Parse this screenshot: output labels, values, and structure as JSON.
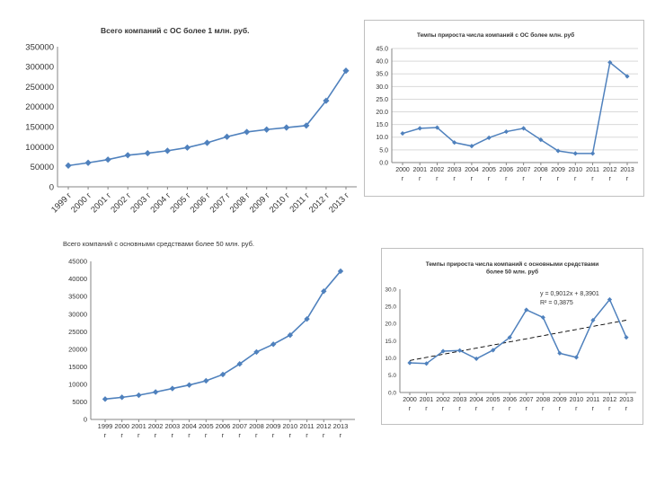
{
  "chart_data": [
    {
      "type": "line",
      "title": "Всего компаний с ОС более 1 млн. руб.",
      "categories": [
        "1999 г",
        "2000 г",
        "2001 г",
        "2002 г",
        "2003 г",
        "2004 г",
        "2005 г",
        "2006 г",
        "2007 г",
        "2008 г",
        "2009 г",
        "2010 г",
        "2011 г",
        "2012 г",
        "2013 г"
      ],
      "values": [
        53000,
        60000,
        68000,
        79000,
        84000,
        90000,
        98000,
        110000,
        125000,
        137000,
        143000,
        148000,
        153000,
        215000,
        290000
      ],
      "ylim": [
        0,
        350000
      ],
      "yticks": [
        "0",
        "50000",
        "100000",
        "150000",
        "200000",
        "250000",
        "300000",
        "350000"
      ],
      "color": "#4f81bd"
    },
    {
      "type": "line",
      "title": "Темпы прироста числа компаний с ОС более млн. руб",
      "categories": [
        "2000 г",
        "2001 г",
        "2002 г",
        "2003 г",
        "2004 г",
        "2005 г",
        "2006 г",
        "2007 г",
        "2008 г",
        "2009 г",
        "2010 г",
        "2011 г",
        "2012 г",
        "2013 г"
      ],
      "values": [
        11.5,
        13.5,
        13.8,
        7.9,
        6.5,
        9.8,
        12.2,
        13.5,
        9.0,
        4.6,
        3.6,
        3.6,
        39.5,
        34.0
      ],
      "ylim": [
        0,
        45
      ],
      "yticks": [
        "0.0",
        "5.0",
        "10.0",
        "15.0",
        "20.0",
        "25.0",
        "30.0",
        "35.0",
        "40.0",
        "45.0"
      ],
      "color": "#4f81bd"
    },
    {
      "type": "line",
      "title": "Всего компаний с основными средствами более 50 млн. руб.",
      "categories": [
        "1999 г",
        "2000 г",
        "2001 г",
        "2002 г",
        "2003 г",
        "2004 г",
        "2005 г",
        "2006 г",
        "2007 г",
        "2008 г",
        "2009 г",
        "2010 г",
        "2011 г",
        "2012 г",
        "2013 г"
      ],
      "values": [
        5800,
        6300,
        6900,
        7800,
        8800,
        9800,
        11000,
        12800,
        15800,
        19200,
        21400,
        24000,
        28600,
        36500,
        42200
      ],
      "ylim": [
        0,
        45000
      ],
      "yticks": [
        "0",
        "5000",
        "10000",
        "15000",
        "20000",
        "25000",
        "30000",
        "35000",
        "40000",
        "45000"
      ],
      "color": "#4f81bd"
    },
    {
      "type": "line",
      "title": "Темпы прироста числа компаний с основными средствами более 50 млн. руб",
      "categories": [
        "2000 г",
        "2001 г",
        "2002 г",
        "2003 г",
        "2004 г",
        "2005 г",
        "2006 г",
        "2007 г",
        "2008 г",
        "2009 г",
        "2010 г",
        "2011 г",
        "2012 г",
        "2013 г"
      ],
      "values": [
        8.6,
        8.4,
        12.0,
        12.2,
        9.8,
        12.3,
        16.0,
        24.0,
        21.8,
        11.4,
        10.2,
        21.0,
        27.0,
        16.0
      ],
      "ylim": [
        0,
        30
      ],
      "yticks": [
        "0.0",
        "5.0",
        "10.0",
        "15.0",
        "20.0",
        "25.0",
        "30.0"
      ],
      "trendline": {
        "slope": 0.9012,
        "intercept": 8.3901
      },
      "annotations": [
        "y = 0,9012x + 8,3901",
        "R² = 0,3875"
      ],
      "color": "#4f81bd"
    }
  ]
}
